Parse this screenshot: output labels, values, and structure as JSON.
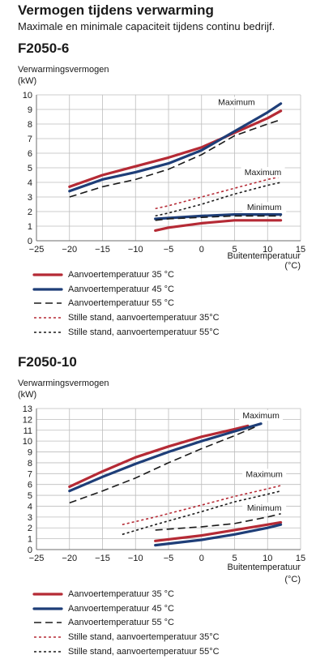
{
  "header": {
    "title": "Vermogen tijdens verwarming",
    "subtitle": "Maximale en minimale capaciteit tijdens continu bedrijf."
  },
  "colors": {
    "red": "#b52a35",
    "blue": "#1e3e78",
    "black": "#1a1a1a",
    "dotted_red": "#b52a35",
    "grid": "#bdbdbd",
    "axis": "#6e6e6e"
  },
  "legend": [
    {
      "label": "Aanvoertemperatuur 35 °C",
      "style": "red-solid"
    },
    {
      "label": "Aanvoertemperatuur 45 °C",
      "style": "blue-solid"
    },
    {
      "label": "Aanvoertemperatuur 55 °C",
      "style": "black-dashed"
    },
    {
      "label": "Stille stand, aanvoertemperatuur 35°C",
      "style": "red-dotted"
    },
    {
      "label": "Stille stand, aanvoertemperatuur 55°C",
      "style": "black-dotted"
    }
  ],
  "chart_data": [
    {
      "type": "line",
      "model": "F2050-6",
      "ylabel": "Verwarmingsvermogen",
      "yunit": "(kW)",
      "xlabel": "Buitentemperatuur",
      "xunit": "(°C)",
      "xlim": [
        -25,
        15
      ],
      "ylim": [
        0,
        10
      ],
      "xticks": [
        -25,
        -20,
        -15,
        -10,
        -5,
        0,
        5,
        10,
        15
      ],
      "yticks": [
        0,
        1,
        2,
        3,
        4,
        5,
        6,
        7,
        8,
        9,
        10
      ],
      "grid": true,
      "annotations": [
        {
          "text": "Maximum",
          "x": 5.3,
          "y": 9.3
        },
        {
          "text": "Maximum",
          "x": 9.3,
          "y": 4.5
        },
        {
          "text": "Minimum",
          "x": 9.5,
          "y": 2.1
        }
      ],
      "series": [
        {
          "style": "red-solid",
          "points": [
            [
              -20,
              3.7
            ],
            [
              -15,
              4.5
            ],
            [
              -10,
              5.1
            ],
            [
              -5,
              5.7
            ],
            [
              0,
              6.4
            ],
            [
              5,
              7.4
            ],
            [
              10,
              8.4
            ],
            [
              12,
              8.9
            ]
          ]
        },
        {
          "style": "blue-solid",
          "points": [
            [
              -20,
              3.4
            ],
            [
              -15,
              4.2
            ],
            [
              -10,
              4.7
            ],
            [
              -5,
              5.3
            ],
            [
              0,
              6.2
            ],
            [
              5,
              7.5
            ],
            [
              10,
              8.8
            ],
            [
              12,
              9.4
            ]
          ]
        },
        {
          "style": "black-dashed",
          "points": [
            [
              -20,
              3.0
            ],
            [
              -15,
              3.7
            ],
            [
              -10,
              4.2
            ],
            [
              -5,
              4.9
            ],
            [
              0,
              5.9
            ],
            [
              5,
              7.2
            ],
            [
              10,
              8.0
            ],
            [
              12,
              8.3
            ]
          ]
        },
        {
          "style": "red-dotted",
          "points": [
            [
              -7,
              2.2
            ],
            [
              -5,
              2.4
            ],
            [
              0,
              3.0
            ],
            [
              5,
              3.6
            ],
            [
              10,
              4.2
            ],
            [
              12,
              4.4
            ]
          ]
        },
        {
          "style": "black-dotted",
          "points": [
            [
              -7,
              1.7
            ],
            [
              -5,
              1.9
            ],
            [
              0,
              2.5
            ],
            [
              5,
              3.2
            ],
            [
              10,
              3.8
            ],
            [
              12,
              4.0
            ]
          ]
        },
        {
          "style": "red-solid",
          "points": [
            [
              -7,
              0.7
            ],
            [
              -5,
              0.9
            ],
            [
              0,
              1.2
            ],
            [
              5,
              1.4
            ],
            [
              10,
              1.4
            ],
            [
              12,
              1.4
            ]
          ]
        },
        {
          "style": "blue-solid",
          "points": [
            [
              -7,
              1.5
            ],
            [
              0,
              1.7
            ],
            [
              5,
              1.8
            ],
            [
              10,
              1.8
            ],
            [
              12,
              1.8
            ]
          ]
        },
        {
          "style": "black-dashed",
          "points": [
            [
              -7,
              1.4
            ],
            [
              -5,
              1.5
            ],
            [
              0,
              1.6
            ],
            [
              5,
              1.7
            ],
            [
              10,
              1.7
            ],
            [
              12,
              1.7
            ]
          ]
        }
      ]
    },
    {
      "type": "line",
      "model": "F2050-10",
      "ylabel": "Verwarmingsvermogen",
      "yunit": "(kW)",
      "xlabel": "Buitentemperatuur",
      "xunit": "(°C)",
      "xlim": [
        -25,
        15
      ],
      "ylim": [
        0,
        13
      ],
      "xticks": [
        -25,
        -20,
        -15,
        -10,
        -5,
        0,
        5,
        10,
        15
      ],
      "yticks": [
        0,
        1,
        2,
        3,
        4,
        5,
        6,
        7,
        8,
        9,
        10,
        11,
        12,
        13
      ],
      "grid": true,
      "annotations": [
        {
          "text": "Maximum",
          "x": 9.0,
          "y": 12.1
        },
        {
          "text": "Maximum",
          "x": 9.5,
          "y": 6.7
        },
        {
          "text": "Minimum",
          "x": 9.5,
          "y": 3.6
        }
      ],
      "series": [
        {
          "style": "red-solid",
          "points": [
            [
              -20,
              5.8
            ],
            [
              -15,
              7.2
            ],
            [
              -10,
              8.5
            ],
            [
              -5,
              9.5
            ],
            [
              0,
              10.4
            ],
            [
              5,
              11.1
            ],
            [
              7,
              11.4
            ]
          ]
        },
        {
          "style": "blue-solid",
          "points": [
            [
              -20,
              5.4
            ],
            [
              -15,
              6.7
            ],
            [
              -10,
              7.9
            ],
            [
              -5,
              9.0
            ],
            [
              0,
              10.0
            ],
            [
              5,
              10.9
            ],
            [
              9,
              11.6
            ]
          ]
        },
        {
          "style": "black-dashed",
          "points": [
            [
              -20,
              4.3
            ],
            [
              -15,
              5.4
            ],
            [
              -10,
              6.6
            ],
            [
              -5,
              8.0
            ],
            [
              0,
              9.3
            ],
            [
              5,
              10.5
            ],
            [
              8.5,
              11.4
            ]
          ]
        },
        {
          "style": "red-dotted",
          "points": [
            [
              -12,
              2.3
            ],
            [
              -7,
              3.0
            ],
            [
              0,
              4.1
            ],
            [
              5,
              4.9
            ],
            [
              10,
              5.6
            ],
            [
              12,
              5.9
            ]
          ]
        },
        {
          "style": "black-dotted",
          "points": [
            [
              -12,
              1.4
            ],
            [
              -7,
              2.3
            ],
            [
              0,
              3.5
            ],
            [
              5,
              4.4
            ],
            [
              10,
              5.1
            ],
            [
              12,
              5.4
            ]
          ]
        },
        {
          "style": "black-dashed",
          "points": [
            [
              -7,
              1.8
            ],
            [
              0,
              2.1
            ],
            [
              5,
              2.4
            ],
            [
              10,
              3.0
            ],
            [
              12,
              3.3
            ]
          ]
        },
        {
          "style": "red-solid",
          "points": [
            [
              -7,
              0.8
            ],
            [
              0,
              1.3
            ],
            [
              5,
              1.8
            ],
            [
              10,
              2.3
            ],
            [
              12,
              2.5
            ]
          ]
        },
        {
          "style": "blue-solid",
          "points": [
            [
              -7,
              0.4
            ],
            [
              0,
              0.9
            ],
            [
              5,
              1.4
            ],
            [
              10,
              2.0
            ],
            [
              12,
              2.3
            ]
          ]
        }
      ]
    }
  ]
}
